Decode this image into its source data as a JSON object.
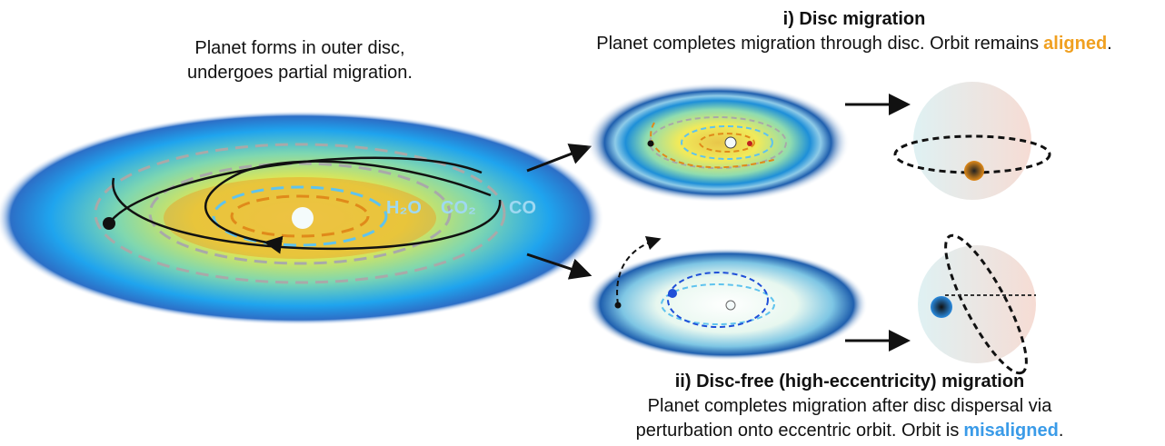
{
  "left_caption": {
    "lines": [
      "Planet forms in outer disc,",
      "undergoes partial migration."
    ]
  },
  "disc_labels": [
    "H₂O",
    "CO₂",
    "CO"
  ],
  "panel_i": {
    "title": "i) Disc migration",
    "text": "Planet completes migration through disc. Orbit remains",
    "highlight": "aligned",
    "end": "."
  },
  "panel_ii": {
    "title": "ii) Disc-free (high-eccentricity) migration",
    "lines": [
      "Planet completes migration after disc dispersal via",
      "perturbation onto eccentric orbit. Orbit is"
    ],
    "highlight": "misaligned",
    "end": "."
  }
}
